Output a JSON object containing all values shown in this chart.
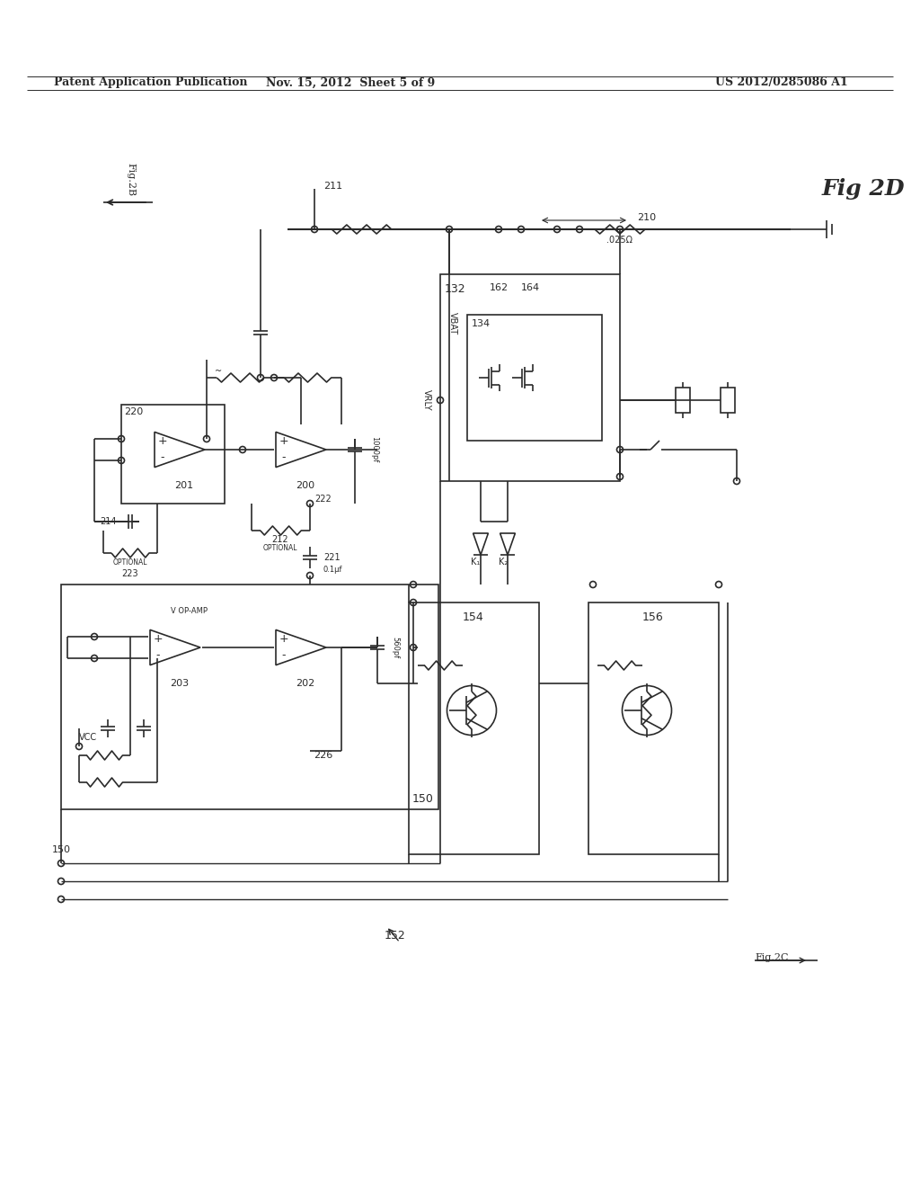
{
  "bg_color": "#ffffff",
  "header_text1": "Patent Application Publication",
  "header_text2": "Nov. 15, 2012  Sheet 5 of 9",
  "header_text3": "US 2012/0285086 A1",
  "line_color": "#2a2a2a",
  "text_color": "#2a2a2a"
}
